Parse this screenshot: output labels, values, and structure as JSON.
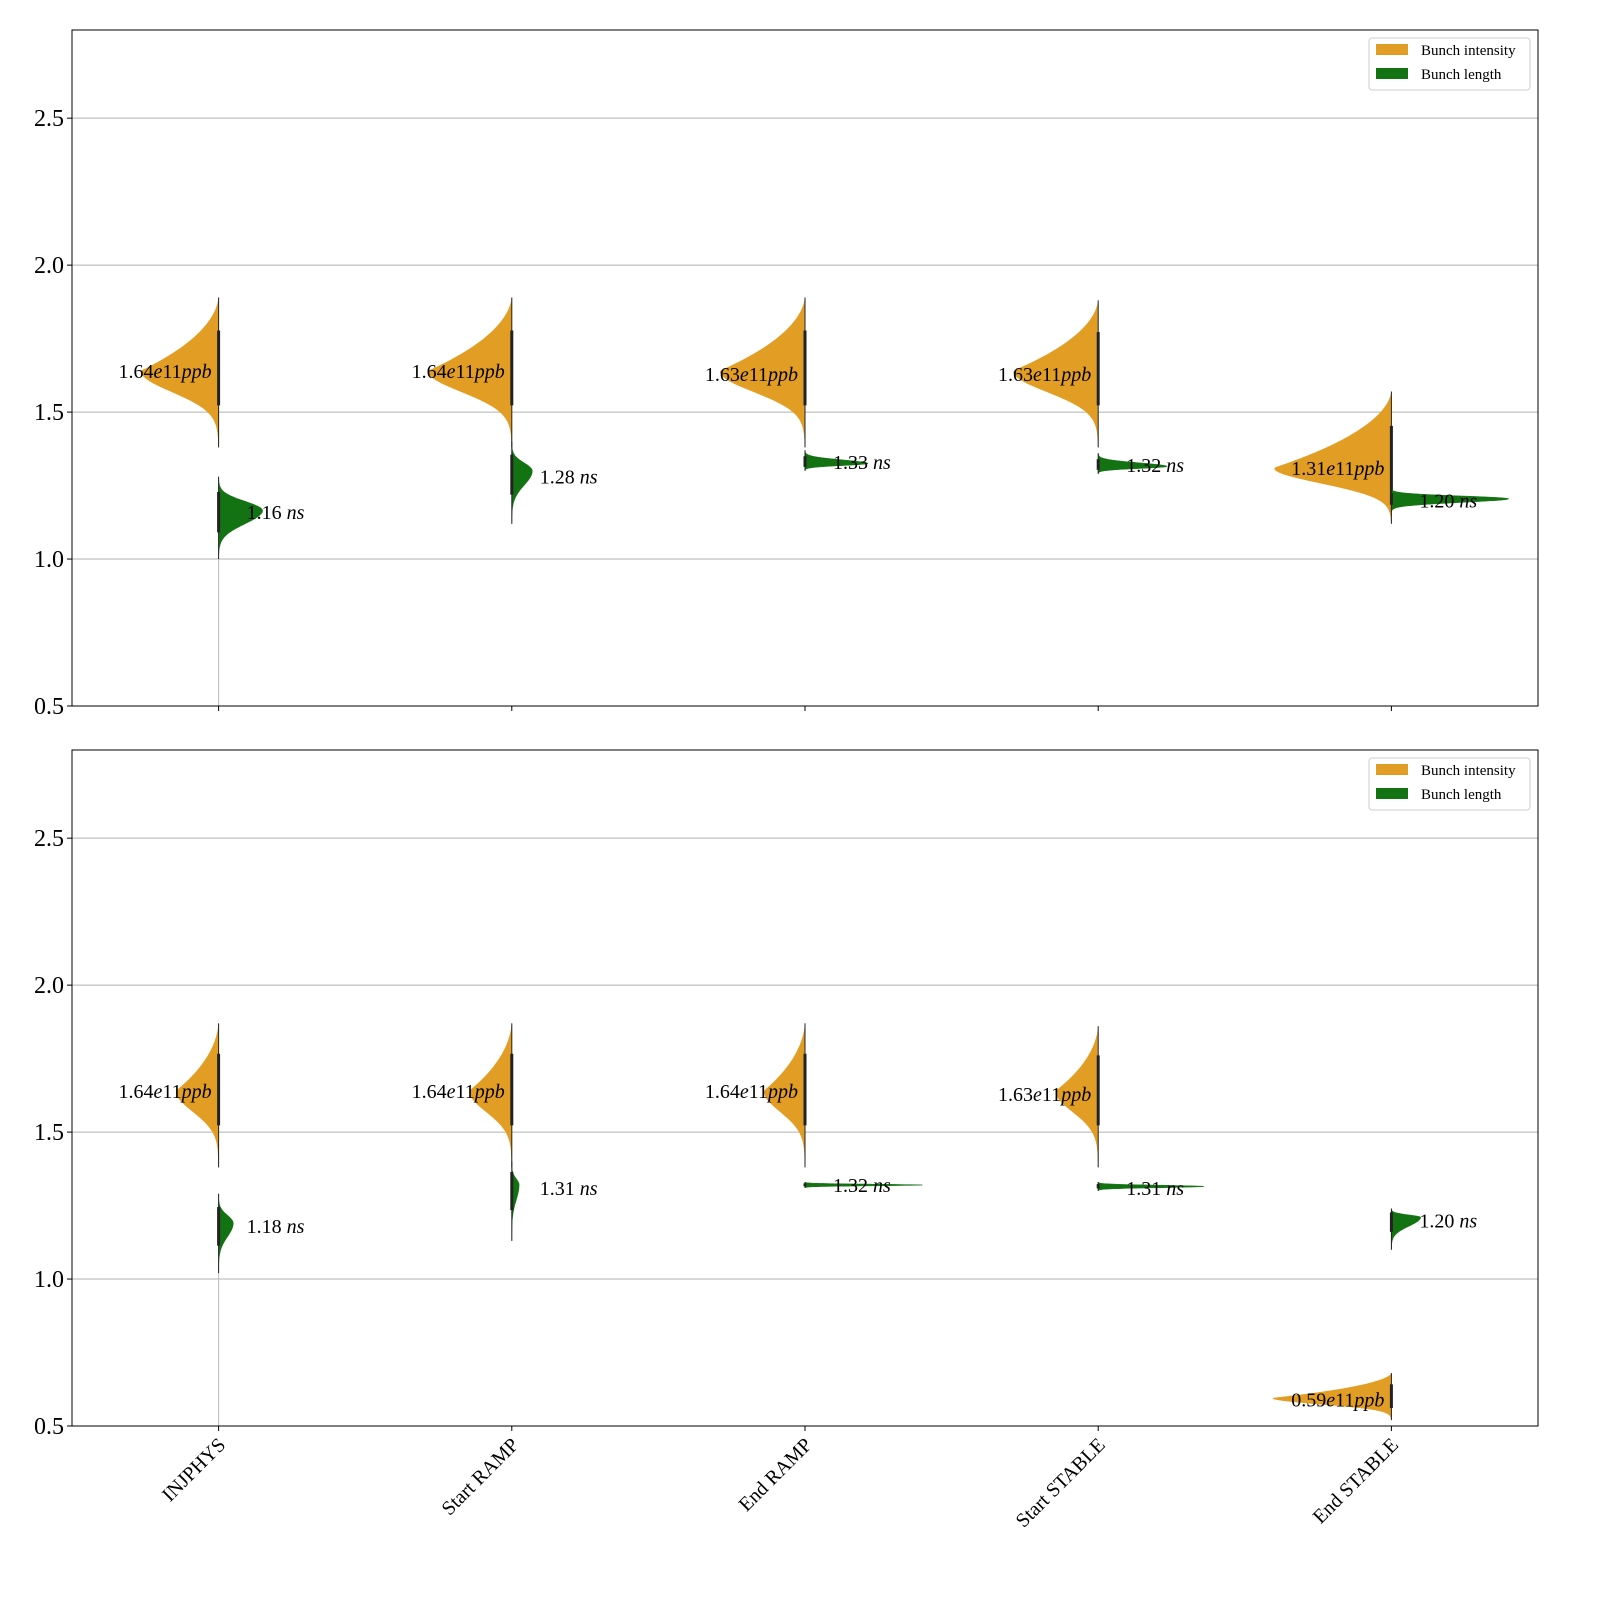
{
  "colors": {
    "intensity": "#E29D24",
    "length": "#137313",
    "grid": "#b0b0b0"
  },
  "chart_data": [
    {
      "type": "split-violin",
      "categories": [
        "INJPHYS",
        "Start RAMP",
        "End RAMP",
        "Start STABLE",
        "End STABLE"
      ],
      "ylim": [
        0.5,
        2.8
      ],
      "yticks": [
        "0.5",
        "1.0",
        "1.5",
        "2.0",
        "2.5"
      ],
      "grid": "y",
      "legend": {
        "placement": "top-right",
        "entries": [
          "Bunch intensity",
          "Bunch length"
        ]
      },
      "series": [
        {
          "name": "Bunch intensity",
          "side": "left",
          "violins": [
            {
              "median": 1.64,
              "min": 1.38,
              "max": 1.89,
              "mode": 1.64,
              "rel_width": 0.53,
              "label_num": "1.64",
              "label_exp": "e11",
              "label_unit": "ppb"
            },
            {
              "median": 1.64,
              "min": 1.38,
              "max": 1.89,
              "mode": 1.64,
              "rel_width": 0.57,
              "label_num": "1.64",
              "label_exp": "e11",
              "label_unit": "ppb"
            },
            {
              "median": 1.63,
              "min": 1.38,
              "max": 1.89,
              "mode": 1.64,
              "rel_width": 0.58,
              "label_num": "1.63",
              "label_exp": "e11",
              "label_unit": "ppb"
            },
            {
              "median": 1.63,
              "min": 1.38,
              "max": 1.88,
              "mode": 1.64,
              "rel_width": 0.58,
              "label_num": "1.63",
              "label_exp": "e11",
              "label_unit": "ppb"
            },
            {
              "median": 1.31,
              "min": 1.12,
              "max": 1.57,
              "mode": 1.31,
              "rel_width": 0.8,
              "label_num": "1.31",
              "label_exp": "e11",
              "label_unit": "ppb"
            }
          ]
        },
        {
          "name": "Bunch length",
          "side": "right",
          "violins": [
            {
              "median": 1.16,
              "min": 1.0,
              "max": 1.28,
              "mode": 1.165,
              "rel_width": 0.3,
              "label_num": "1.16",
              "label_unit": "ns"
            },
            {
              "median": 1.28,
              "min": 1.12,
              "max": 1.4,
              "mode": 1.3,
              "rel_width": 0.14,
              "label_num": "1.28",
              "label_unit": "ns"
            },
            {
              "median": 1.33,
              "min": 1.3,
              "max": 1.37,
              "mode": 1.325,
              "rel_width": 0.43,
              "label_num": "1.33",
              "label_unit": "ns"
            },
            {
              "median": 1.32,
              "min": 1.29,
              "max": 1.36,
              "mode": 1.315,
              "rel_width": 0.47,
              "label_num": "1.32",
              "label_unit": "ns"
            },
            {
              "median": 1.2,
              "min": 1.16,
              "max": 1.24,
              "mode": 1.205,
              "rel_width": 0.8,
              "label_num": "1.20",
              "label_unit": "ns"
            }
          ]
        }
      ]
    },
    {
      "type": "split-violin",
      "categories": [
        "INJPHYS",
        "Start RAMP",
        "End RAMP",
        "Start STABLE",
        "End STABLE"
      ],
      "ylim": [
        0.5,
        2.8
      ],
      "yticks": [
        "0.5",
        "1.0",
        "1.5",
        "2.0",
        "2.5"
      ],
      "grid": "y",
      "legend": {
        "placement": "top-right",
        "entries": [
          "Bunch intensity",
          "Bunch length"
        ]
      },
      "series": [
        {
          "name": "Bunch intensity",
          "side": "left",
          "violins": [
            {
              "median": 1.64,
              "min": 1.38,
              "max": 1.87,
              "mode": 1.64,
              "rel_width": 0.29,
              "label_num": "1.64",
              "label_exp": "e11",
              "label_unit": "ppb"
            },
            {
              "median": 1.64,
              "min": 1.38,
              "max": 1.87,
              "mode": 1.64,
              "rel_width": 0.29,
              "label_num": "1.64",
              "label_exp": "e11",
              "label_unit": "ppb"
            },
            {
              "median": 1.64,
              "min": 1.38,
              "max": 1.87,
              "mode": 1.64,
              "rel_width": 0.28,
              "label_num": "1.64",
              "label_exp": "e11",
              "label_unit": "ppb"
            },
            {
              "median": 1.63,
              "min": 1.38,
              "max": 1.86,
              "mode": 1.64,
              "rel_width": 0.29,
              "label_num": "1.63",
              "label_exp": "e11",
              "label_unit": "ppb"
            },
            {
              "median": 0.59,
              "min": 0.52,
              "max": 0.68,
              "mode": 0.595,
              "rel_width": 0.81,
              "label_num": "0.59",
              "label_exp": "e11",
              "label_unit": "ppb"
            }
          ]
        },
        {
          "name": "Bunch length",
          "side": "right",
          "violins": [
            {
              "median": 1.18,
              "min": 1.02,
              "max": 1.29,
              "mode": 1.19,
              "rel_width": 0.1,
              "label_num": "1.18",
              "label_unit": "ns"
            },
            {
              "median": 1.31,
              "min": 1.13,
              "max": 1.4,
              "mode": 1.32,
              "rel_width": 0.05,
              "label_num": "1.31",
              "label_unit": "ns"
            },
            {
              "median": 1.32,
              "min": 1.31,
              "max": 1.33,
              "mode": 1.32,
              "rel_width": 0.8,
              "label_num": "1.32",
              "label_unit": "ns"
            },
            {
              "median": 1.31,
              "min": 1.3,
              "max": 1.33,
              "mode": 1.315,
              "rel_width": 0.72,
              "label_num": "1.31",
              "label_unit": "ns"
            },
            {
              "median": 1.2,
              "min": 1.1,
              "max": 1.24,
              "mode": 1.21,
              "rel_width": 0.2,
              "label_num": "1.20",
              "label_unit": "ns"
            }
          ]
        }
      ]
    }
  ]
}
